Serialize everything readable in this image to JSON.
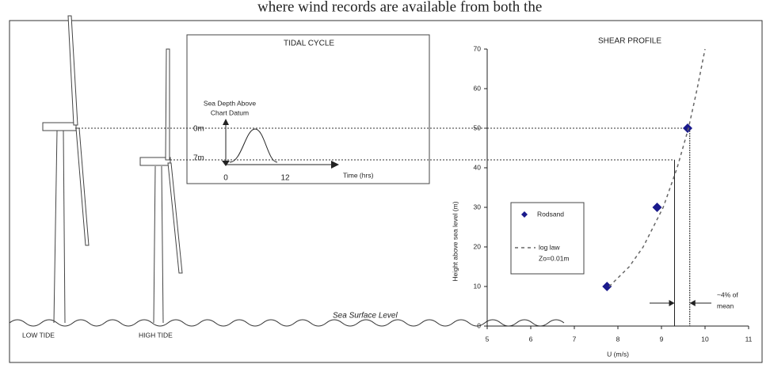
{
  "header_text": "where wind records are available from both the",
  "diagram": {
    "low_tide": "LOW TIDE",
    "high_tide": "HIGH TIDE",
    "sea_surface": "Sea Surface Level",
    "tidal_cycle": {
      "title": "TIDAL CYCLE",
      "y_label": [
        "Sea Depth Above",
        "Chart Datum"
      ],
      "levels": [
        "0m",
        "7m"
      ],
      "x_ticks": [
        "0",
        "12"
      ],
      "x_label": "Time (hrs)"
    }
  },
  "chart_data": {
    "type": "scatter",
    "title": "SHEAR PROFILE",
    "x_label": "U (m/s)",
    "y_label": "Height above sea level (m)",
    "xlim": [
      5,
      11
    ],
    "ylim": [
      0,
      70
    ],
    "xticks": [
      5,
      6,
      7,
      8,
      9,
      10,
      11
    ],
    "yticks": [
      0,
      10,
      20,
      30,
      40,
      50,
      60,
      70
    ],
    "series": [
      {
        "name": "Rodsand",
        "color": "#1a1a8c",
        "marker": "diamond",
        "x": [
          7.75,
          8.9,
          9.6
        ],
        "values": [
          10,
          30,
          50
        ]
      },
      {
        "name": "log law",
        "parameter": "Zo=0.01m",
        "color": "#666666",
        "marker": "dashed-line",
        "x": [
          7.8,
          8.26,
          8.58,
          9.04,
          9.36,
          9.62,
          9.82,
          10.0
        ],
        "values": [
          10,
          15,
          20,
          30,
          40,
          50,
          60,
          70
        ]
      }
    ],
    "reference_lines": [
      {
        "x": 9.3,
        "y": 42
      },
      {
        "x": 9.65,
        "y": 50
      }
    ],
    "annotation": [
      "~4% of",
      "mean"
    ]
  }
}
